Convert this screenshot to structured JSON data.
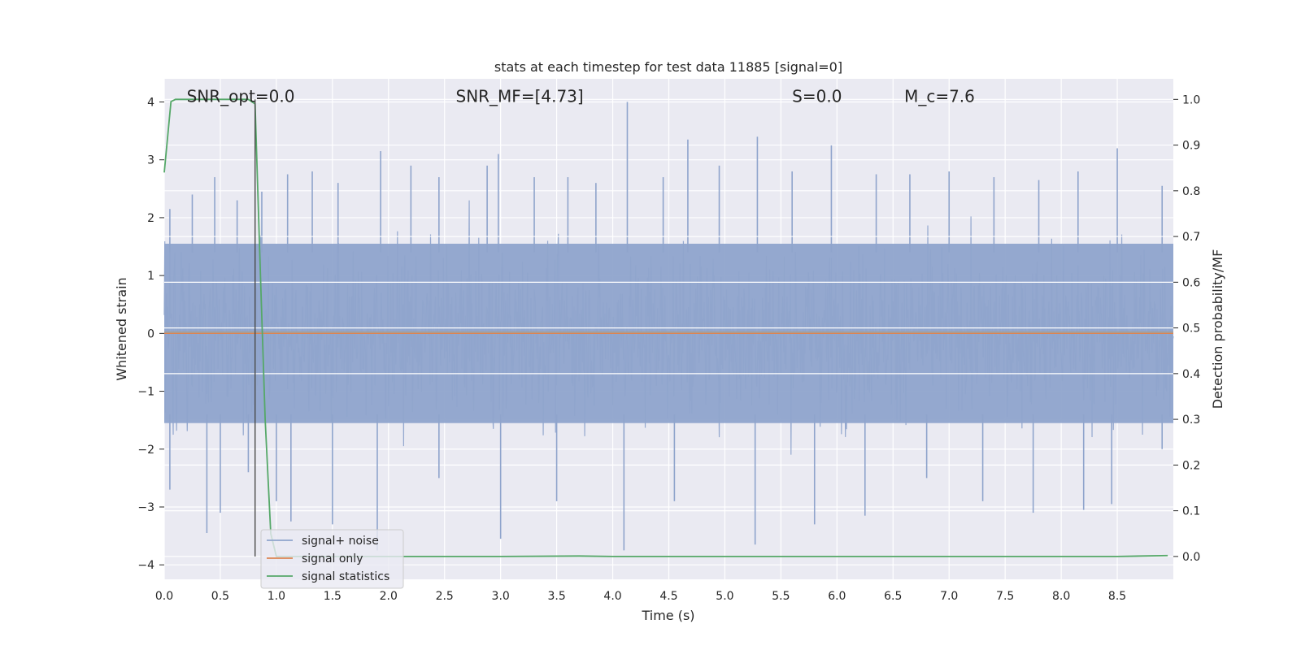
{
  "chart_data": {
    "type": "line",
    "title": "stats at each timestep for test data 11885 [signal=0]",
    "xlabel": "Time (s)",
    "ylabel": "Whitened strain",
    "y2label": "Detection probability/MF",
    "xlim": [
      0.0,
      9.0
    ],
    "ylim": [
      -4.25,
      4.4
    ],
    "y2lim": [
      -0.05,
      1.045
    ],
    "xticks": [
      "0.0",
      "0.5",
      "1.0",
      "1.5",
      "2.0",
      "2.5",
      "3.0",
      "3.5",
      "4.0",
      "4.5",
      "5.0",
      "5.5",
      "6.0",
      "6.5",
      "7.0",
      "7.5",
      "8.0",
      "8.5"
    ],
    "yticks": [
      "4",
      "3",
      "2",
      "1",
      "0",
      "−1",
      "−2",
      "−3",
      "−4"
    ],
    "y2ticks": [
      "1.0",
      "0.9",
      "0.8",
      "0.7",
      "0.6",
      "0.5",
      "0.4",
      "0.3",
      "0.2",
      "0.1",
      "0.0"
    ],
    "grid": true,
    "legend_position": "lower-left",
    "annotations": [
      {
        "text": "SNR_opt=0.0",
        "x": 0.2,
        "y": 4.1
      },
      {
        "text": "SNR_MF=[4.73]",
        "x": 2.6,
        "y": 4.1
      },
      {
        "text": "S=0.0",
        "x": 5.6,
        "y": 4.1
      },
      {
        "text": "M_c=7.6",
        "x": 6.6,
        "y": 4.1
      }
    ],
    "vertical_line_x": 0.81,
    "series": [
      {
        "name": "signal+ noise",
        "axis": "left",
        "color": "#8fa4cc",
        "description_values": {
          "envelope_max": 4.0,
          "envelope_min": -3.75,
          "typical_amplitude": 2.0
        },
        "peaks": [
          {
            "x": 0.05,
            "y": 2.15
          },
          {
            "x": 0.25,
            "y": 2.4
          },
          {
            "x": 0.45,
            "y": 2.7
          },
          {
            "x": 0.65,
            "y": 2.3
          },
          {
            "x": 0.87,
            "y": 2.45
          },
          {
            "x": 1.1,
            "y": 2.75
          },
          {
            "x": 1.32,
            "y": 2.8
          },
          {
            "x": 1.55,
            "y": 2.6
          },
          {
            "x": 1.93,
            "y": 3.15
          },
          {
            "x": 2.2,
            "y": 2.9
          },
          {
            "x": 2.45,
            "y": 2.7
          },
          {
            "x": 2.88,
            "y": 2.9
          },
          {
            "x": 2.98,
            "y": 3.1
          },
          {
            "x": 3.3,
            "y": 2.7
          },
          {
            "x": 3.6,
            "y": 2.7
          },
          {
            "x": 3.85,
            "y": 2.6
          },
          {
            "x": 4.13,
            "y": 4.0
          },
          {
            "x": 4.45,
            "y": 2.7
          },
          {
            "x": 4.67,
            "y": 3.35
          },
          {
            "x": 4.95,
            "y": 2.9
          },
          {
            "x": 5.29,
            "y": 3.4
          },
          {
            "x": 5.6,
            "y": 2.8
          },
          {
            "x": 5.95,
            "y": 3.25
          },
          {
            "x": 6.35,
            "y": 2.75
          },
          {
            "x": 6.65,
            "y": 2.75
          },
          {
            "x": 7.0,
            "y": 2.8
          },
          {
            "x": 7.4,
            "y": 2.7
          },
          {
            "x": 7.8,
            "y": 2.65
          },
          {
            "x": 8.15,
            "y": 2.8
          },
          {
            "x": 8.5,
            "y": 3.2
          },
          {
            "x": 8.9,
            "y": 2.55
          }
        ],
        "troughs": [
          {
            "x": 0.05,
            "y": -2.7
          },
          {
            "x": 0.38,
            "y": -3.45
          },
          {
            "x": 0.5,
            "y": -3.1
          },
          {
            "x": 0.75,
            "y": -2.4
          },
          {
            "x": 1.0,
            "y": -2.9
          },
          {
            "x": 1.13,
            "y": -3.25
          },
          {
            "x": 1.5,
            "y": -3.3
          },
          {
            "x": 1.9,
            "y": -3.75
          },
          {
            "x": 2.45,
            "y": -2.5
          },
          {
            "x": 3.0,
            "y": -3.55
          },
          {
            "x": 3.5,
            "y": -2.9
          },
          {
            "x": 4.1,
            "y": -3.75
          },
          {
            "x": 4.55,
            "y": -2.9
          },
          {
            "x": 5.27,
            "y": -3.65
          },
          {
            "x": 5.8,
            "y": -3.3
          },
          {
            "x": 6.25,
            "y": -3.15
          },
          {
            "x": 6.8,
            "y": -2.5
          },
          {
            "x": 7.3,
            "y": -2.9
          },
          {
            "x": 7.75,
            "y": -3.1
          },
          {
            "x": 8.2,
            "y": -3.05
          },
          {
            "x": 8.45,
            "y": -2.95
          },
          {
            "x": 8.9,
            "y": -2.0
          }
        ]
      },
      {
        "name": "signal only",
        "axis": "left",
        "color": "#dd8452",
        "x": [
          0.0,
          9.0
        ],
        "y": [
          0.0,
          0.0
        ]
      },
      {
        "name": "signal statistics",
        "axis": "right",
        "color": "#55a868",
        "x": [
          0.0,
          0.06,
          0.1,
          0.2,
          0.4,
          0.6,
          0.75,
          0.81,
          0.86,
          0.9,
          0.95,
          1.0,
          1.5,
          2.0,
          3.0,
          3.7,
          4.0,
          5.0,
          6.0,
          7.0,
          8.0,
          8.5,
          8.95
        ],
        "y": [
          0.84,
          0.995,
          1.0,
          1.0,
          1.0,
          1.0,
          1.0,
          0.99,
          0.6,
          0.3,
          0.05,
          0.0,
          0.0,
          0.0,
          0.0,
          0.001,
          0.0,
          0.0,
          0.0,
          0.0,
          0.0,
          0.0,
          0.002
        ]
      }
    ]
  }
}
